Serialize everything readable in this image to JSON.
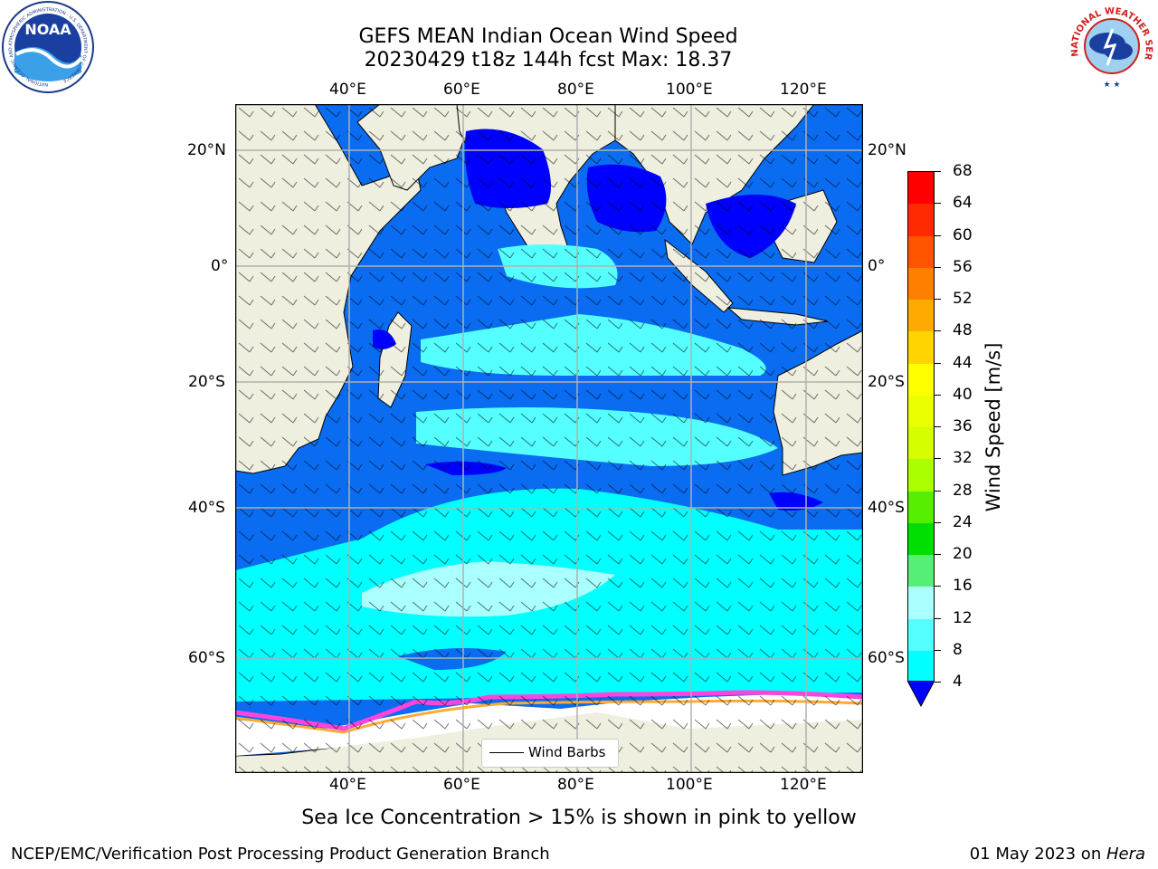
{
  "title": {
    "line1": "GEFS MEAN Indian Ocean Wind Speed",
    "line2": "20230429 t18z 144h fcst   Max: 18.37"
  },
  "map": {
    "lon_labels": [
      "40°E",
      "60°E",
      "80°E",
      "100°E",
      "120°E"
    ],
    "lat_labels": [
      "20°N",
      "0°",
      "20°S",
      "40°S",
      "60°S"
    ],
    "legend_label": "Wind Barbs"
  },
  "colorbar": {
    "label": "Wind Speed [m/s]",
    "ticks": [
      "68",
      "64",
      "60",
      "56",
      "52",
      "48",
      "44",
      "40",
      "36",
      "32",
      "28",
      "24",
      "20",
      "16",
      "12",
      "8",
      "4"
    ],
    "colors": [
      "#ff0000",
      "#ff2a00",
      "#ff5500",
      "#ff8000",
      "#ffaa00",
      "#ffd400",
      "#ffff00",
      "#eaff00",
      "#d5ff00",
      "#aaff00",
      "#55ee00",
      "#00dd00",
      "#55ee77",
      "#aaffff",
      "#55ffff",
      "#00ffff",
      "#0077ff"
    ],
    "extend_color": "#0000ff"
  },
  "caption": "Sea Ice Concentration > 15% is shown in pink to yellow",
  "footer": {
    "left": "NCEP/EMC/Verification Post Processing Product Generation Branch",
    "right_date": "01 May 2023 on ",
    "right_host": "Hera"
  },
  "logos": {
    "noaa_text": "NOAA",
    "noaa_ring": "NATIONAL OCEANIC AND ATMOSPHERIC ADMINISTRATION · U.S. DEPARTMENT OF COMMERCE ·",
    "nws_ring": "NATIONAL WEATHER SERVICE"
  }
}
